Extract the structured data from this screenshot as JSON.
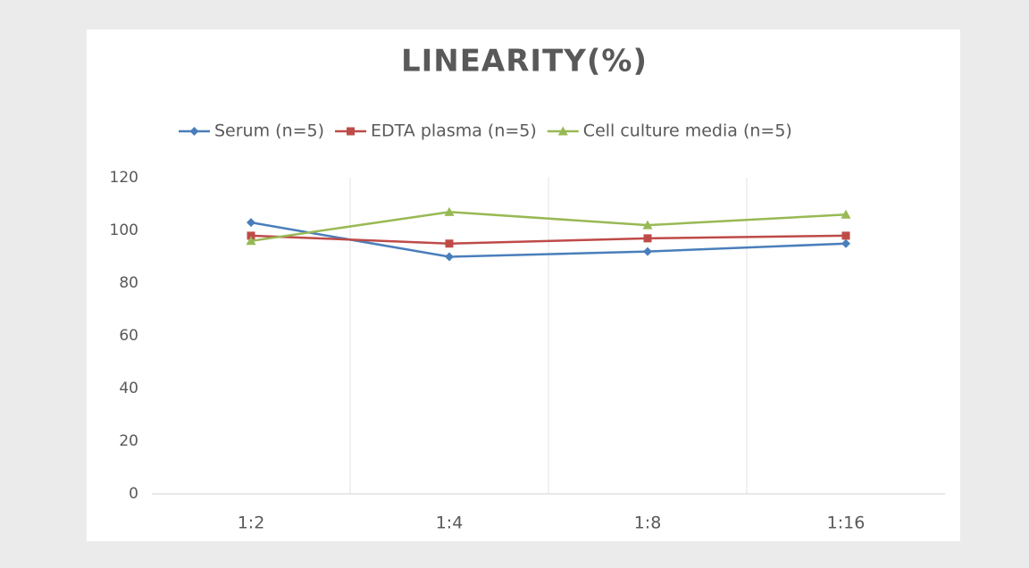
{
  "chart_data": {
    "type": "line",
    "title": "LINEARITY(%)",
    "categories": [
      "1:2",
      "1:4",
      "1:8",
      "1:16"
    ],
    "series": [
      {
        "name": "Serum (n=5)",
        "color": "#4a7ebb",
        "marker": "diamond",
        "values": [
          103,
          90,
          92,
          95
        ]
      },
      {
        "name": "EDTA plasma (n=5)",
        "color": "#be4b48",
        "marker": "square",
        "values": [
          98,
          95,
          97,
          98
        ]
      },
      {
        "name": "Cell culture media (n=5)",
        "color": "#98b954",
        "marker": "triangle",
        "values": [
          96,
          107,
          102,
          106
        ]
      }
    ],
    "ylim": [
      0,
      120
    ],
    "yticks": [
      0,
      20,
      40,
      60,
      80,
      100,
      120
    ],
    "grid": false,
    "legend": "top"
  }
}
